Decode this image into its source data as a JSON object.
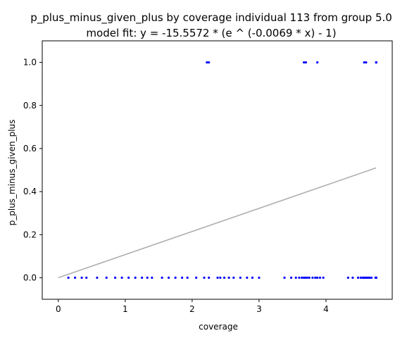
{
  "chart_data": {
    "type": "scatter",
    "title": "p_plus_minus_given_plus by coverage individual 113 from group 5.0",
    "subtitle": "model fit: y = -15.5572 * (e ^ (-0.0069 * x) - 1)",
    "xlabel": "coverage",
    "ylabel": "p_plus_minus_given_plus",
    "xlim": [
      -0.24,
      4.99
    ],
    "ylim": [
      -0.1,
      1.1
    ],
    "x_ticks": [
      0,
      1,
      2,
      3,
      4
    ],
    "x_tick_labels": [
      "0",
      "1",
      "2",
      "3",
      "4"
    ],
    "y_ticks": [
      0.0,
      0.2,
      0.4,
      0.6,
      0.8,
      1.0
    ],
    "y_tick_labels": [
      "0.0",
      "0.2",
      "0.4",
      "0.6",
      "0.8",
      "1.0"
    ],
    "grid": false,
    "colors": {
      "points": "#0000ff",
      "fit_line": "#b0b0b0"
    },
    "series": [
      {
        "type": "scatter",
        "x": [
          0.15,
          0.25,
          0.35,
          0.42,
          0.58,
          0.72,
          0.85,
          0.95,
          1.05,
          1.15,
          1.25,
          1.33,
          1.4,
          1.55,
          1.65,
          1.75,
          1.85,
          1.93,
          2.06,
          2.18,
          2.25,
          2.38,
          2.42,
          2.48,
          2.55,
          2.62,
          2.72,
          2.82,
          2.9,
          3.0,
          3.38,
          3.48,
          3.55,
          3.6,
          3.64,
          3.67,
          3.69,
          3.72,
          3.75,
          3.8,
          3.84,
          3.87,
          3.91,
          3.96,
          4.33,
          4.4,
          4.48,
          4.52,
          4.55,
          4.57,
          4.59,
          4.61,
          4.63,
          4.65,
          4.68,
          4.74,
          4.75,
          4.75,
          4.75,
          2.22,
          2.25,
          3.67,
          3.7,
          3.87,
          4.57,
          4.6,
          4.75,
          4.75,
          4.75
        ],
        "y": [
          0,
          0,
          0,
          0,
          0,
          0,
          0,
          0,
          0,
          0,
          0,
          0,
          0,
          0,
          0,
          0,
          0,
          0,
          0,
          0,
          0,
          0,
          0,
          0,
          0,
          0,
          0,
          0,
          0,
          0,
          0,
          0,
          0,
          0,
          0,
          0,
          0,
          0,
          0,
          0,
          0,
          0,
          0,
          0,
          0,
          0,
          0,
          0,
          0,
          0,
          0,
          0,
          0,
          0,
          0,
          0,
          0,
          0,
          0,
          1,
          1,
          1,
          1,
          1,
          1,
          1,
          1,
          1,
          1
        ]
      },
      {
        "type": "line",
        "x": [
          0,
          4.75
        ],
        "y": [
          0,
          0.51
        ]
      }
    ]
  }
}
